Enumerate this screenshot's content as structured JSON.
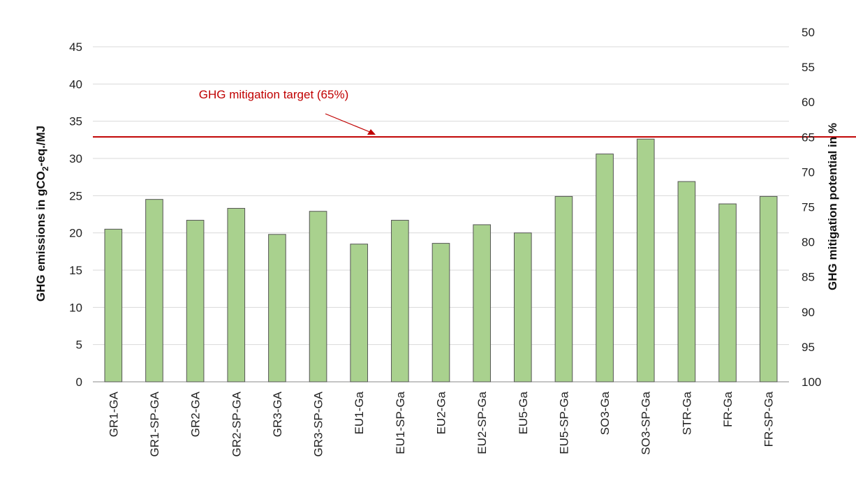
{
  "chart_data": {
    "type": "bar",
    "categories": [
      "GR1-GA",
      "GR1-SP-GA",
      "GR2-GA",
      "GR2-SP-GA",
      "GR3-GA",
      "GR3-SP-GA",
      "EU1-Ga",
      "EU1-SP-Ga",
      "EU2-Ga",
      "EU2-SP-Ga",
      "EU5-Ga",
      "EU5-SP-Ga",
      "SO3-Ga",
      "SO3-SP-Ga",
      "STR-Ga",
      "FR-Ga",
      "FR-SP-Ga"
    ],
    "values": [
      20.5,
      24.5,
      21.7,
      23.3,
      19.8,
      22.9,
      18.5,
      21.7,
      18.6,
      21.1,
      20.0,
      24.9,
      30.6,
      32.6,
      26.9,
      23.9,
      24.9
    ],
    "title": "",
    "xlabel": "",
    "ylabel_main": "GHG emissions in gCO",
    "ylabel_sub": "2",
    "ylabel_tail": "-eq./MJ",
    "ylim": [
      0,
      45
    ],
    "yticks": [
      "0",
      "5",
      "10",
      "15",
      "20",
      "25",
      "30",
      "35",
      "40",
      "45"
    ],
    "y2label": "GHG mitigation potential in %",
    "y2lim": [
      100,
      50
    ],
    "y2ticks": [
      "100",
      "95",
      "90",
      "85",
      "80",
      "75",
      "70",
      "65",
      "60",
      "55",
      "50"
    ],
    "target_line": {
      "label": "GHG mitigation target (65%)",
      "value": 32.9
    },
    "grid": true,
    "bar_color": "#a9d18e",
    "bar_edge": "#555555",
    "target_color": "#c00000"
  }
}
